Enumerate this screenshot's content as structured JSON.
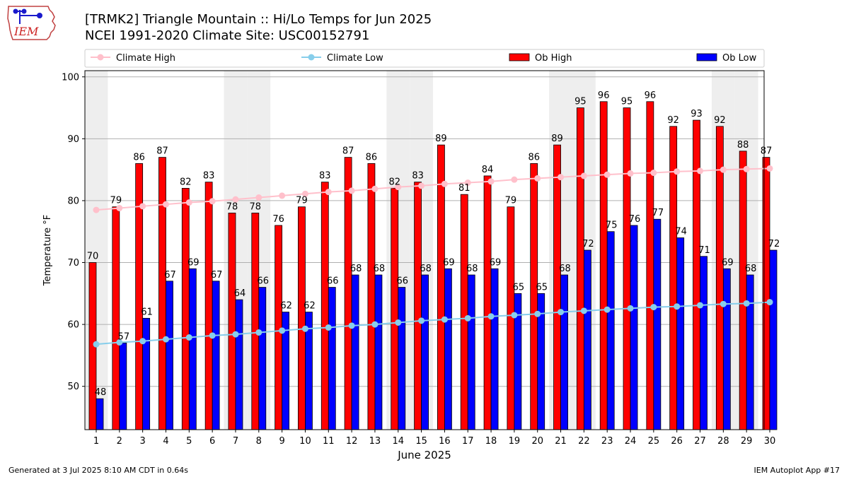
{
  "header": {
    "title_line1": "[TRMK2] Triangle Mountain :: Hi/Lo Temps for Jun 2025",
    "title_line2": "NCEI 1991-2020 Climate Site: USC00152791"
  },
  "logo": {
    "text": "IEM",
    "icon": "iem-iowa-logo"
  },
  "footer": {
    "generated": "Generated at 3 Jul 2025 8:10 AM CDT in 0.64s",
    "app": "IEM Autoplot App #17"
  },
  "colors": {
    "ob_high": "#ff0000",
    "ob_low": "#0000ff",
    "climate_high": "#ffc0cb",
    "climate_low": "#87ceeb",
    "weekend_shade": "#eeeeee",
    "grid": "#b0b0b0"
  },
  "chart_data": {
    "type": "bar",
    "xlabel": "June 2025",
    "ylabel": "Temperature °F",
    "ylim": [
      43,
      101
    ],
    "yticks": [
      50,
      60,
      70,
      80,
      90,
      100
    ],
    "grid": "horizontal",
    "legend_position": "top",
    "categories": [
      "1",
      "2",
      "3",
      "4",
      "5",
      "6",
      "7",
      "8",
      "9",
      "10",
      "11",
      "12",
      "13",
      "14",
      "15",
      "16",
      "17",
      "18",
      "19",
      "20",
      "21",
      "22",
      "23",
      "24",
      "25",
      "26",
      "27",
      "28",
      "29",
      "30"
    ],
    "shaded_days": [
      1,
      7,
      8,
      14,
      15,
      21,
      22,
      28,
      29
    ],
    "series": [
      {
        "name": "Climate High",
        "kind": "line",
        "color": "#ffc0cb",
        "values": [
          78.5,
          78.8,
          79.1,
          79.4,
          79.7,
          79.9,
          80.2,
          80.5,
          80.8,
          81.1,
          81.4,
          81.6,
          81.9,
          82.2,
          82.4,
          82.7,
          82.9,
          83.1,
          83.4,
          83.6,
          83.8,
          84.0,
          84.2,
          84.4,
          84.5,
          84.7,
          84.8,
          85.0,
          85.1,
          85.2
        ]
      },
      {
        "name": "Climate Low",
        "kind": "line",
        "color": "#87ceeb",
        "values": [
          56.8,
          57.1,
          57.3,
          57.6,
          57.9,
          58.2,
          58.4,
          58.7,
          59.0,
          59.3,
          59.5,
          59.8,
          60.0,
          60.3,
          60.6,
          60.8,
          61.0,
          61.3,
          61.5,
          61.7,
          62.0,
          62.2,
          62.4,
          62.6,
          62.8,
          62.9,
          63.1,
          63.3,
          63.4,
          63.6
        ]
      },
      {
        "name": "Ob High",
        "kind": "bar",
        "color": "#ff0000",
        "values": [
          70,
          79,
          86,
          87,
          82,
          83,
          78,
          78,
          76,
          79,
          83,
          87,
          86,
          82,
          83,
          89,
          81,
          84,
          79,
          86,
          89,
          95,
          96,
          95,
          96,
          92,
          93,
          92,
          88,
          87
        ]
      },
      {
        "name": "Ob Low",
        "kind": "bar",
        "color": "#0000ff",
        "values": [
          48,
          57,
          61,
          67,
          69,
          67,
          64,
          66,
          62,
          62,
          66,
          68,
          68,
          66,
          68,
          69,
          68,
          69,
          65,
          65,
          68,
          72,
          75,
          76,
          77,
          74,
          71,
          69,
          68,
          72
        ]
      }
    ]
  }
}
